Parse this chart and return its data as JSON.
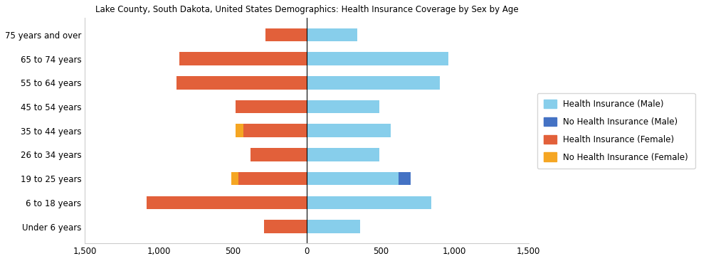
{
  "title": "Lake County, South Dakota, United States Demographics: Health Insurance Coverage by Sex by Age",
  "age_groups": [
    "Under 6 years",
    "6 to 18 years",
    "19 to 25 years",
    "26 to 34 years",
    "35 to 44 years",
    "45 to 54 years",
    "55 to 64 years",
    "65 to 74 years",
    "75 years and over"
  ],
  "health_insurance_male": [
    360,
    840,
    620,
    490,
    570,
    490,
    900,
    960,
    340
  ],
  "no_health_insurance_male": [
    0,
    0,
    85,
    0,
    0,
    0,
    0,
    0,
    0
  ],
  "health_insurance_female": [
    290,
    1080,
    460,
    380,
    430,
    480,
    880,
    860,
    280
  ],
  "no_health_insurance_female": [
    0,
    0,
    50,
    0,
    50,
    0,
    0,
    0,
    0
  ],
  "color_health_male": "#87CEEB",
  "color_no_health_male": "#4472C4",
  "color_health_female": "#E2603A",
  "color_no_health_female": "#F5A623",
  "xlim": [
    -1500,
    1500
  ],
  "xticks": [
    -1500,
    -1000,
    -500,
    0,
    500,
    1000,
    1500
  ],
  "xticklabels": [
    "1,500",
    "1,000",
    "500",
    "0",
    "500",
    "1,000",
    "1,500"
  ],
  "legend_labels": [
    "Health Insurance (Male)",
    "No Health Insurance (Male)",
    "Health Insurance (Female)",
    "No Health Insurance (Female)"
  ],
  "figsize": [
    9.85,
    3.67
  ],
  "dpi": 100,
  "bar_height": 0.55
}
